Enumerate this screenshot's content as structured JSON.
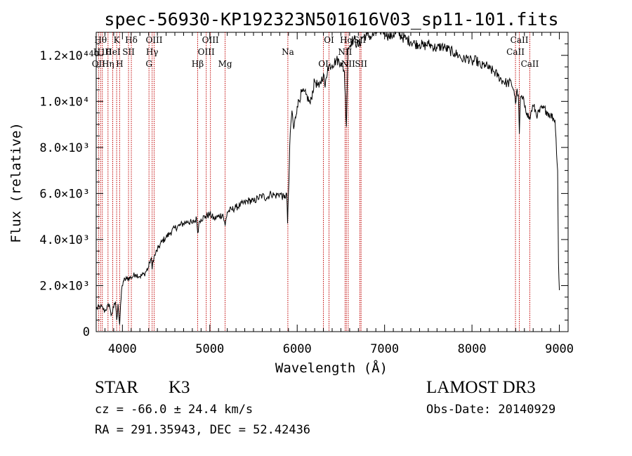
{
  "chart_data": {
    "type": "line",
    "title": "spec-56930-KP192323N501616V03_sp11-101.fits",
    "xlabel": "Wavelength (Å)",
    "ylabel": "Flux (relative)",
    "xlim": [
      3700,
      9100
    ],
    "ylim": [
      0,
      13000
    ],
    "x_ticks": [
      {
        "value": 4000,
        "label": "4000"
      },
      {
        "value": 5000,
        "label": "5000"
      },
      {
        "value": 6000,
        "label": "6000"
      },
      {
        "value": 7000,
        "label": "7000"
      },
      {
        "value": 8000,
        "label": "8000"
      },
      {
        "value": 9000,
        "label": "9000"
      }
    ],
    "y_ticks": [
      {
        "value": 0,
        "label": "0"
      },
      {
        "value": 2000,
        "label": "2.0×10³"
      },
      {
        "value": 4000,
        "label": "4.0×10³"
      },
      {
        "value": 6000,
        "label": "6.0×10³"
      },
      {
        "value": 8000,
        "label": "8.0×10³"
      },
      {
        "value": 10000,
        "label": "1.0×10⁴"
      },
      {
        "value": 12000,
        "label": "1.2×10⁴"
      }
    ],
    "series": [
      {
        "name": "spectrum",
        "x": [
          3700,
          3750,
          3800,
          3850,
          3870,
          3900,
          3920,
          3935,
          3950,
          3968,
          3990,
          4010,
          4050,
          4100,
          4150,
          4200,
          4250,
          4300,
          4310,
          4330,
          4340,
          4350,
          4380,
          4420,
          4450,
          4500,
          4550,
          4600,
          4650,
          4700,
          4750,
          4800,
          4850,
          4861,
          4880,
          4900,
          4950,
          5000,
          5050,
          5100,
          5150,
          5175,
          5200,
          5250,
          5300,
          5350,
          5400,
          5450,
          5500,
          5550,
          5600,
          5650,
          5700,
          5750,
          5800,
          5850,
          5880,
          5890,
          5896,
          5905,
          5920,
          5940,
          5960,
          6000,
          6050,
          6100,
          6150,
          6200,
          6250,
          6300,
          6320,
          6350,
          6400,
          6450,
          6500,
          6540,
          6563,
          6580,
          6600,
          6620,
          6650,
          6700,
          6750,
          6800,
          6850,
          6900,
          6950,
          7000,
          7050,
          7100,
          7150,
          7200,
          7250,
          7300,
          7350,
          7400,
          7450,
          7500,
          7550,
          7600,
          7650,
          7700,
          7750,
          7800,
          7850,
          7900,
          7950,
          8000,
          8050,
          8100,
          8150,
          8200,
          8250,
          8300,
          8350,
          8400,
          8450,
          8480,
          8498,
          8510,
          8530,
          8542,
          8555,
          8580,
          8610,
          8630,
          8662,
          8680,
          8700,
          8750,
          8800,
          8850,
          8900,
          8950,
          8980,
          8990,
          9000
        ],
        "y": [
          1000,
          1100,
          900,
          1200,
          700,
          1050,
          1300,
          500,
          1200,
          300,
          1800,
          2200,
          2300,
          2350,
          2500,
          2400,
          2500,
          2800,
          3000,
          3200,
          2700,
          3100,
          3400,
          3700,
          3900,
          4100,
          4300,
          4500,
          4600,
          4700,
          4800,
          4700,
          4900,
          4300,
          4800,
          4900,
          5000,
          5100,
          4900,
          5000,
          5100,
          4600,
          5200,
          5300,
          5400,
          5500,
          5600,
          5700,
          5650,
          5800,
          5900,
          5800,
          6000,
          5900,
          6000,
          5800,
          6000,
          4700,
          5600,
          6500,
          8600,
          9600,
          8800,
          9800,
          10400,
          10300,
          9900,
          10900,
          10600,
          11200,
          10600,
          11500,
          11600,
          11800,
          11700,
          11300,
          8900,
          12300,
          12400,
          12600,
          12700,
          12400,
          12800,
          12900,
          12800,
          13000,
          13100,
          13100,
          12800,
          12900,
          13000,
          12800,
          12700,
          12600,
          12500,
          12500,
          12400,
          12500,
          12400,
          12300,
          12400,
          12300,
          12200,
          12100,
          12000,
          11800,
          11900,
          11700,
          11800,
          11500,
          11600,
          11400,
          11300,
          11100,
          10900,
          10800,
          10800,
          10500,
          9900,
          10400,
          10300,
          8600,
          10200,
          10100,
          9800,
          9500,
          9200,
          9600,
          9800,
          9400,
          9700,
          9600,
          9400,
          9200,
          7000,
          3000,
          1800
        ]
      }
    ],
    "line_markers": [
      {
        "x": 3727,
        "labels": [
          "OII"
        ],
        "row": 2
      },
      {
        "x": 3750,
        "labels": [
          "Hθ"
        ],
        "row": 0
      },
      {
        "x": 3770,
        "labels": [
          "H10"
        ],
        "row": 1
      },
      {
        "x": 3835,
        "labels": [
          "Hη"
        ],
        "row": 2
      },
      {
        "x": 3889,
        "labels": [
          "HeI"
        ],
        "row": 1
      },
      {
        "x": 3934,
        "labels": [
          "K"
        ],
        "row": 0
      },
      {
        "x": 3968,
        "labels": [
          "H"
        ],
        "row": 2
      },
      {
        "x": 4070,
        "labels": [
          "SII"
        ],
        "row": 1
      },
      {
        "x": 4102,
        "labels": [
          "Hδ"
        ],
        "row": 0
      },
      {
        "x": 4304,
        "labels": [
          "G"
        ],
        "row": 2
      },
      {
        "x": 4340,
        "labels": [
          "Hγ"
        ],
        "row": 1
      },
      {
        "x": 4363,
        "labels": [
          "OIII"
        ],
        "row": 0
      },
      {
        "x": 4861,
        "labels": [
          "Hβ"
        ],
        "row": 2
      },
      {
        "x": 4959,
        "labels": [
          "OIII"
        ],
        "row": 1
      },
      {
        "x": 5007,
        "labels": [
          "OIII"
        ],
        "row": 0
      },
      {
        "x": 5175,
        "labels": [
          "Mg"
        ],
        "row": 2
      },
      {
        "x": 5893,
        "labels": [
          "Na"
        ],
        "row": 1
      },
      {
        "x": 6300,
        "labels": [
          "OI"
        ],
        "row": 2
      },
      {
        "x": 6364,
        "labels": [
          "OI"
        ],
        "row": 0
      },
      {
        "x": 6548,
        "labels": [
          "NII"
        ],
        "row": 1
      },
      {
        "x": 6563,
        "labels": [
          "Hα"
        ],
        "row": 0
      },
      {
        "x": 6584,
        "labels": [
          "NII"
        ],
        "row": 2
      },
      {
        "x": 6717,
        "labels": [
          "SII"
        ],
        "row": 0
      },
      {
        "x": 6731,
        "labels": [
          "SII"
        ],
        "row": 2
      },
      {
        "x": 8498,
        "labels": [
          "CaII"
        ],
        "row": 1
      },
      {
        "x": 8542,
        "labels": [
          "CaII"
        ],
        "row": 0
      },
      {
        "x": 8662,
        "labels": [
          "CaII"
        ],
        "row": 2
      }
    ],
    "marker_row_labels": [
      {
        "row": 1,
        "anchor_x": 3730,
        "text": "40"
      }
    ],
    "line_label_overlaps": [
      "Hθ",
      "H10",
      "OII",
      "HeI",
      "Hη",
      "SII",
      "NII",
      "NII",
      "SII"
    ],
    "grid": false,
    "legend": "none"
  },
  "info": {
    "object_type": "STAR",
    "subclass": "K3",
    "redshift": "cz = -66.0 ± 24.4 km/s",
    "coords": "RA = 291.35943, DEC =  52.42436",
    "survey": "LAMOST DR3",
    "obs_date": "Obs-Date: 20140929"
  },
  "colors": {
    "line": "#000000",
    "marker": "#c00000",
    "background": "#ffffff"
  }
}
